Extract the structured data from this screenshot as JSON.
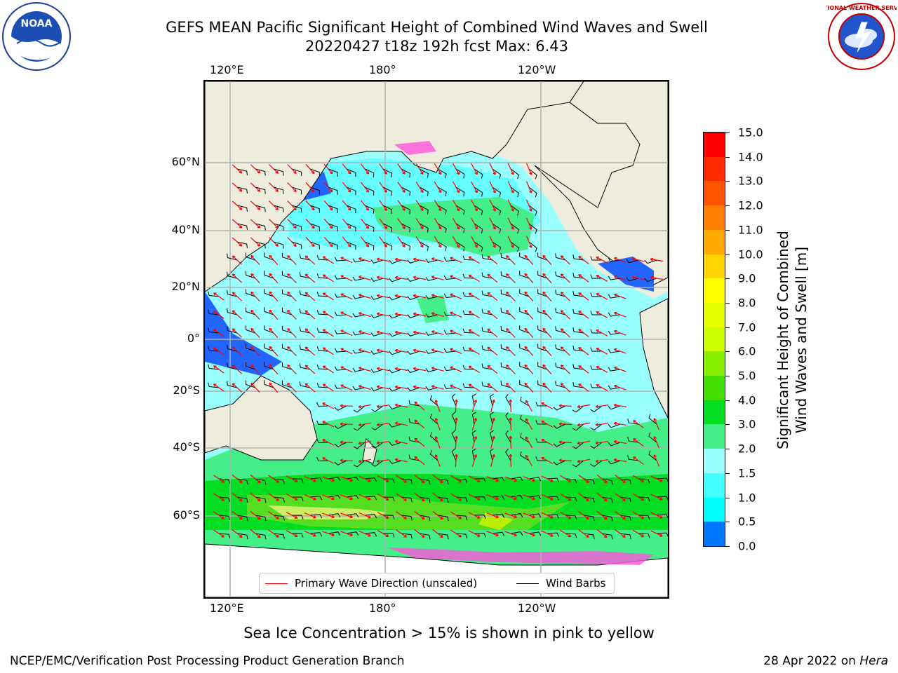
{
  "title": {
    "line1": "GEFS MEAN Pacific Significant Height of Combined Wind Waves and Swell",
    "line2": "20220427 t18z 192h fcst   Max: 6.43"
  },
  "logos": {
    "left": {
      "text": "NOAA",
      "icon": "noaa-logo"
    },
    "right": {
      "text": "NATIONAL WEATHER SERVICE",
      "icon": "nws-logo"
    }
  },
  "map": {
    "lon_labels": [
      "120°E",
      "180°",
      "120°W"
    ],
    "lat_labels": [
      "60°N",
      "40°N",
      "20°N",
      "0°",
      "20°S",
      "40°S",
      "60°S"
    ],
    "colors": {
      "land": "#eeecdc",
      "ice_free_ocean_low": "#0000ff",
      "wave_1_5_2": "#33ffff",
      "wave_2_3": "#99ffff",
      "wave_3_4": "#44ee77",
      "wave_4_5": "#00dd00",
      "wave_5_6": "#55dd22",
      "wave_6_7": "#bbee00",
      "sea_ice_pink": "#ff55dd",
      "sea_ice_yellow": "#ffcc44",
      "wave_direction": "#ff0000",
      "wind_barb": "#000000",
      "grid": "#b0b0b0"
    }
  },
  "colorbar": {
    "labels": [
      "15.0",
      "14.0",
      "13.0",
      "12.0",
      "11.0",
      "10.0",
      "9.0",
      "8.0",
      "7.0",
      "6.0",
      "5.0",
      "4.0",
      "3.0",
      "2.0",
      "1.5",
      "1.0",
      "0.5",
      "0.0"
    ],
    "colors_top_to_bottom": [
      "#ff0000",
      "#ff2a00",
      "#ff5500",
      "#ff8000",
      "#ffaa00",
      "#ffd400",
      "#ffff00",
      "#e6ff00",
      "#ccff00",
      "#88ee00",
      "#44dd00",
      "#00dd22",
      "#44ee88",
      "#99ffff",
      "#44ffff",
      "#00ffff",
      "#0077ff",
      "#0000ff"
    ],
    "label_line1": "Significant Height of Combined",
    "label_line2": "Wind Waves and Swell [m]"
  },
  "legend": {
    "wave_direction": "Primary Wave Direction (unscaled)",
    "wind_barbs": "Wind Barbs"
  },
  "footnote": "Sea Ice Concentration > 15% is shown in pink to yellow",
  "credit": "NCEP/EMC/Verification Post Processing Product Generation Branch",
  "date_prefix": "28 Apr 2022 on ",
  "date_machine": "Hera"
}
